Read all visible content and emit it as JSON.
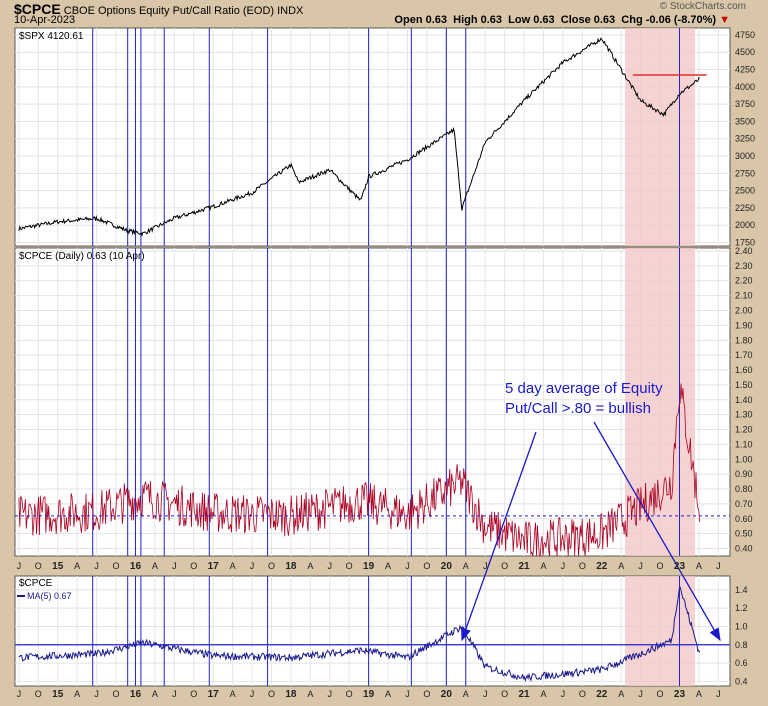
{
  "header": {
    "symbol": "$CPCE",
    "description": "CBOE Options Equity Put/Call Ratio (EOD)",
    "exchange": "INDX",
    "date": "10-Apr-2023",
    "open": "Open 0.63",
    "high": "High 0.63",
    "low": "Low 0.63",
    "close": "Close 0.63",
    "chg": "Chg -0.06 (-8.70%)",
    "brand": "© StockCharts.com"
  },
  "colors": {
    "background": "#d9c6a8",
    "panel": "#ffffff",
    "spx_line": "#000000",
    "cpce_line": "#aa0022",
    "ma_line": "#1a1a8c",
    "vertical_lines": "#2222cc",
    "highlight": "#f2c8c8",
    "annotation": "#1a1acc",
    "resistance": "#dd3333"
  },
  "chart_data": [
    {
      "type": "line",
      "label": "$SPX 4120.61",
      "y_ticks": [
        1750,
        2000,
        2250,
        2500,
        2750,
        3000,
        3250,
        3500,
        3750,
        4000,
        4250,
        4500,
        4750
      ],
      "ylim": [
        1700,
        4850
      ],
      "x": [
        2014.5,
        2015.0,
        2015.5,
        2015.9,
        2016.1,
        2016.5,
        2017.0,
        2017.5,
        2018.0,
        2018.1,
        2018.5,
        2018.9,
        2019.0,
        2019.5,
        2020.1,
        2020.2,
        2020.5,
        2021.0,
        2021.5,
        2022.0,
        2022.5,
        2022.8,
        2023.0,
        2023.27
      ],
      "values": [
        1950,
        2050,
        2100,
        1920,
        1880,
        2100,
        2270,
        2470,
        2870,
        2620,
        2800,
        2350,
        2700,
        2950,
        3380,
        2240,
        3200,
        3800,
        4350,
        4700,
        3800,
        3600,
        3900,
        4120
      ],
      "resistance": {
        "from": 2022.4,
        "to": 2023.35,
        "value": 4170
      }
    },
    {
      "type": "line",
      "label": "$CPCE (Daily) 0.63 (10 Apr)",
      "y_ticks": [
        0.4,
        0.5,
        0.6,
        0.7,
        0.8,
        0.9,
        1.0,
        1.1,
        1.2,
        1.3,
        1.4,
        1.5,
        1.6,
        1.7,
        1.8,
        1.9,
        2.0,
        2.1,
        2.2,
        2.3,
        2.4
      ],
      "ylim": [
        0.35,
        2.42
      ],
      "reference_line": 0.62,
      "x": [
        2014.5,
        2015.5,
        2016.1,
        2017.0,
        2018.0,
        2018.9,
        2019.5,
        2020.2,
        2020.5,
        2021.0,
        2021.5,
        2022.0,
        2022.5,
        2022.9,
        2023.0,
        2023.27
      ],
      "values": [
        0.62,
        0.65,
        0.75,
        0.64,
        0.62,
        0.72,
        0.63,
        0.85,
        0.55,
        0.45,
        0.47,
        0.5,
        0.68,
        0.85,
        1.5,
        0.63
      ],
      "annotation": "5 day average of Equity Put/Call >.80 = bullish",
      "annotation_lines": [
        "5 day average of Equity",
        "Put/Call >.80 = bullish"
      ]
    },
    {
      "type": "line",
      "label": "$CPCE",
      "legend": "MA(5) 0.67",
      "y_ticks": [
        0.4,
        0.6,
        0.8,
        1.0,
        1.2,
        1.4
      ],
      "ylim": [
        0.35,
        1.55
      ],
      "reference_line": 0.8,
      "x": [
        2014.5,
        2015.5,
        2016.1,
        2017.0,
        2018.0,
        2018.9,
        2019.5,
        2020.2,
        2020.5,
        2021.0,
        2021.5,
        2022.0,
        2022.5,
        2022.9,
        2023.0,
        2023.27
      ],
      "values": [
        0.66,
        0.7,
        0.82,
        0.68,
        0.66,
        0.74,
        0.66,
        1.0,
        0.56,
        0.44,
        0.48,
        0.53,
        0.7,
        0.85,
        1.45,
        0.67
      ]
    }
  ],
  "x_axis": {
    "range": [
      2014.45,
      2023.65
    ],
    "labels": [
      {
        "t": 2014.5,
        "l": "J"
      },
      {
        "t": 2014.75,
        "l": "O"
      },
      {
        "t": 2015.0,
        "l": "15"
      },
      {
        "t": 2015.25,
        "l": "A"
      },
      {
        "t": 2015.5,
        "l": "J"
      },
      {
        "t": 2015.75,
        "l": "O"
      },
      {
        "t": 2016.0,
        "l": "16"
      },
      {
        "t": 2016.25,
        "l": "A"
      },
      {
        "t": 2016.5,
        "l": "J"
      },
      {
        "t": 2016.75,
        "l": "O"
      },
      {
        "t": 2017.0,
        "l": "17"
      },
      {
        "t": 2017.25,
        "l": "A"
      },
      {
        "t": 2017.5,
        "l": "J"
      },
      {
        "t": 2017.75,
        "l": "O"
      },
      {
        "t": 2018.0,
        "l": "18"
      },
      {
        "t": 2018.25,
        "l": "A"
      },
      {
        "t": 2018.5,
        "l": "J"
      },
      {
        "t": 2018.75,
        "l": "O"
      },
      {
        "t": 2019.0,
        "l": "19"
      },
      {
        "t": 2019.25,
        "l": "A"
      },
      {
        "t": 2019.5,
        "l": "J"
      },
      {
        "t": 2019.75,
        "l": "O"
      },
      {
        "t": 2020.0,
        "l": "20"
      },
      {
        "t": 2020.25,
        "l": "A"
      },
      {
        "t": 2020.5,
        "l": "J"
      },
      {
        "t": 2020.75,
        "l": "O"
      },
      {
        "t": 2021.0,
        "l": "21"
      },
      {
        "t": 2021.25,
        "l": "A"
      },
      {
        "t": 2021.5,
        "l": "J"
      },
      {
        "t": 2021.75,
        "l": "O"
      },
      {
        "t": 2022.0,
        "l": "22"
      },
      {
        "t": 2022.25,
        "l": "A"
      },
      {
        "t": 2022.5,
        "l": "J"
      },
      {
        "t": 2022.75,
        "l": "O"
      },
      {
        "t": 2023.0,
        "l": "23"
      },
      {
        "t": 2023.25,
        "l": "A"
      },
      {
        "t": 2023.5,
        "l": "J"
      }
    ],
    "highlight": [
      2022.3,
      2023.2
    ],
    "vertical_lines": [
      2015.45,
      2015.9,
      2016.0,
      2016.07,
      2016.37,
      2016.95,
      2017.7,
      2019.0,
      2019.55,
      2020.0,
      2020.25,
      2023.0
    ]
  }
}
